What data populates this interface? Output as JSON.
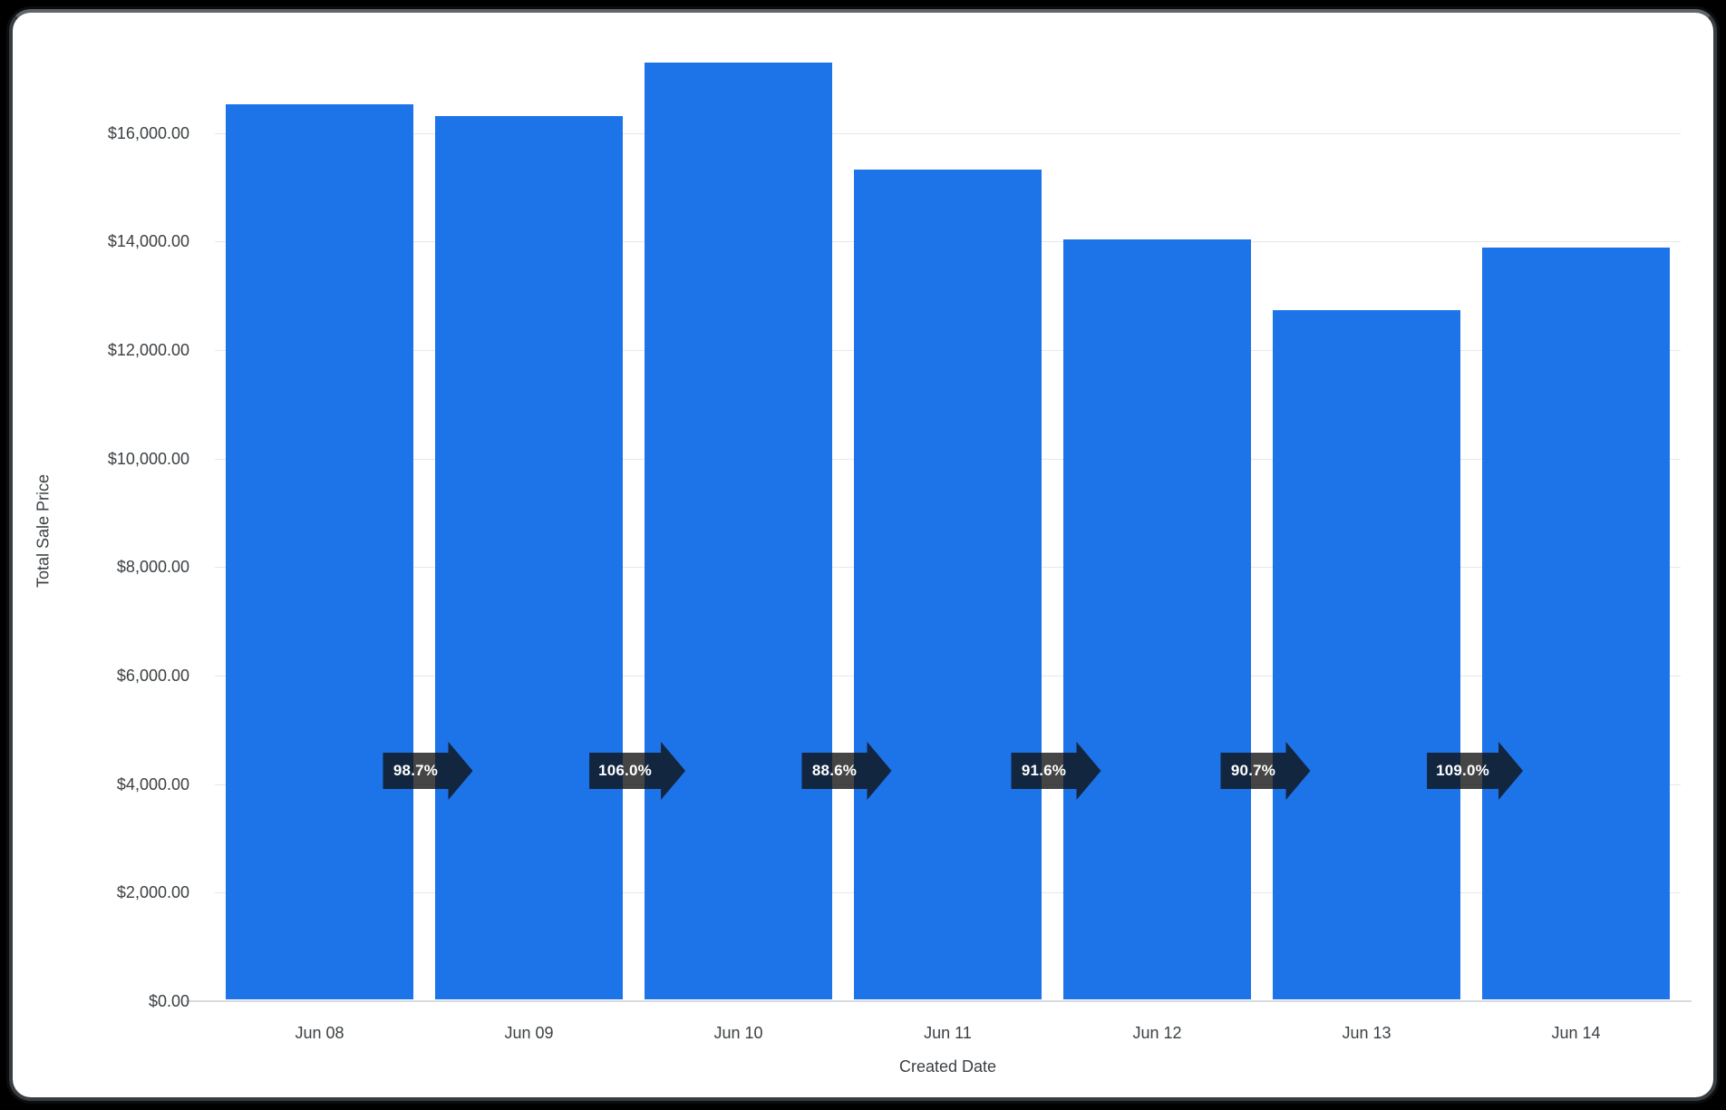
{
  "frame": {
    "background_color": "#000000",
    "card_background": "#ffffff",
    "card_border_color": "#383d41"
  },
  "chart_data": {
    "type": "bar",
    "title": "",
    "xlabel": "Created Date",
    "ylabel": "Total Sale Price",
    "categories": [
      "Jun 08",
      "Jun 09",
      "Jun 10",
      "Jun 11",
      "Jun 12",
      "Jun 13",
      "Jun 14"
    ],
    "values": [
      16500,
      16286,
      17263,
      15295,
      14010,
      12707,
      13851
    ],
    "growth_labels": [
      "98.7%",
      "106.0%",
      "88.6%",
      "91.6%",
      "90.7%",
      "109.0%"
    ],
    "y_ticks": [
      {
        "v": 0,
        "label": "$0.00"
      },
      {
        "v": 2000,
        "label": "$2,000.00"
      },
      {
        "v": 4000,
        "label": "$4,000.00"
      },
      {
        "v": 6000,
        "label": "$6,000.00"
      },
      {
        "v": 8000,
        "label": "$8,000.00"
      },
      {
        "v": 10000,
        "label": "$10,000.00"
      },
      {
        "v": 12000,
        "label": "$12,000.00"
      },
      {
        "v": 14000,
        "label": "$14,000.00"
      },
      {
        "v": 16000,
        "label": "$16,000.00"
      }
    ],
    "ylim": [
      0,
      17800
    ],
    "grid": true,
    "legend_position": "none",
    "bar_color": "#1d73e8",
    "badge_color_rgba": "rgba(17,17,17,0.78)",
    "axis_text_color": "#3c4043",
    "gridline_color": "#e8e8e8"
  }
}
